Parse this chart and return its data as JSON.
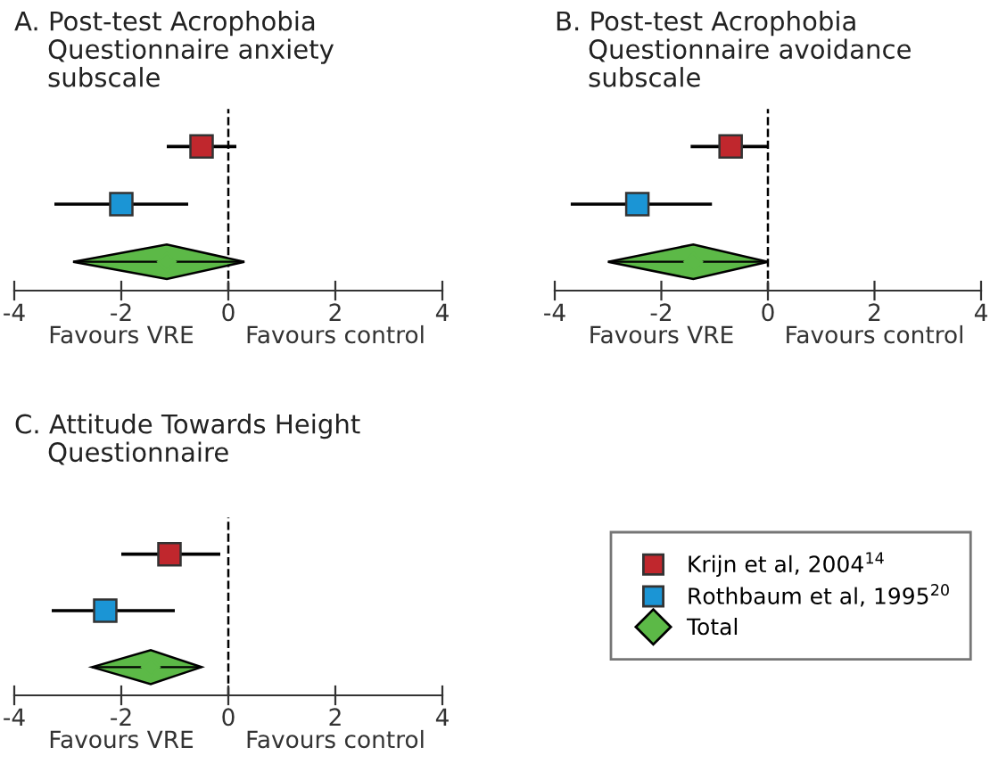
{
  "chart_data": [
    {
      "type": "scatter",
      "title": "A. Post-test Acrophobia\n    Questionnaire anxiety\n    subscale",
      "orientation": "horizontal",
      "categories": [
        null,
        null,
        null
      ],
      "xlim": [
        -4,
        4
      ],
      "xticks": [
        -4,
        -2,
        0,
        2,
        4
      ],
      "tick_labels": "x",
      "grid": false,
      "legend": false,
      "ref_lines": [
        {
          "axis": "x",
          "value": 0,
          "line_style": "dashed",
          "color": "#000000"
        }
      ],
      "annotations": [
        "Favours VRE",
        "Favours control"
      ],
      "series": [
        {
          "color": "#c0272d",
          "marker": "square",
          "values": [
            -0.5,
            null,
            null
          ],
          "errors": [
            [
              -1.15,
              0.15
            ],
            null,
            null
          ]
        },
        {
          "color": "#1b95d5",
          "marker": "square",
          "values": [
            null,
            -2.0,
            null
          ],
          "errors": [
            null,
            [
              -3.25,
              -0.75
            ],
            null
          ]
        },
        {
          "color": "#5cb947",
          "marker": "diamond",
          "values": [
            null,
            null,
            -1.15
          ],
          "errors": [
            null,
            null,
            [
              -2.9,
              0.3
            ]
          ]
        }
      ]
    },
    {
      "type": "scatter",
      "title": "B. Post-test Acrophobia\n    Questionnaire avoidance\n    subscale",
      "orientation": "horizontal",
      "categories": [
        null,
        null,
        null
      ],
      "xlim": [
        -4,
        4
      ],
      "xticks": [
        -4,
        -2,
        0,
        2,
        4
      ],
      "tick_labels": "x",
      "grid": false,
      "legend": false,
      "ref_lines": [
        {
          "axis": "x",
          "value": 0,
          "line_style": "dashed",
          "color": "#000000"
        }
      ],
      "annotations": [
        "Favours VRE",
        "Favours control"
      ],
      "series": [
        {
          "color": "#c0272d",
          "marker": "square",
          "values": [
            -0.7,
            null,
            null
          ],
          "errors": [
            [
              -1.45,
              0.0
            ],
            null,
            null
          ]
        },
        {
          "color": "#1b95d5",
          "marker": "square",
          "values": [
            null,
            -2.45,
            null
          ],
          "errors": [
            null,
            [
              -3.7,
              -1.05
            ],
            null
          ]
        },
        {
          "color": "#5cb947",
          "marker": "diamond",
          "values": [
            null,
            null,
            -1.4
          ],
          "errors": [
            null,
            null,
            [
              -3.0,
              0.0
            ]
          ]
        }
      ]
    },
    {
      "type": "scatter",
      "title": "C. Attitude Towards Height\n    Questionnaire",
      "orientation": "horizontal",
      "categories": [
        null,
        null,
        null
      ],
      "xlim": [
        -4,
        4
      ],
      "xticks": [
        -4,
        -2,
        0,
        2,
        4
      ],
      "tick_labels": "x",
      "grid": false,
      "legend": "right",
      "ref_lines": [
        {
          "axis": "x",
          "value": 0,
          "line_style": "dashed",
          "color": "#000000"
        }
      ],
      "annotations": [
        "Favours VRE",
        "Favours control"
      ],
      "series": [
        {
          "name": "Krijn et al, 2004$^{14}$",
          "color": "#c0272d",
          "marker": "square",
          "values": [
            -1.1,
            null,
            null
          ],
          "errors": [
            [
              -2.0,
              -0.15
            ],
            null,
            null
          ]
        },
        {
          "name": "Rothbaum et al, 1995$^{20}$",
          "color": "#1b95d5",
          "marker": "square",
          "values": [
            null,
            -2.3,
            null
          ],
          "errors": [
            null,
            [
              -3.3,
              -1.0
            ],
            null
          ]
        },
        {
          "name": "Total",
          "color": "#5cb947",
          "marker": "diamond",
          "values": [
            null,
            null,
            -1.45
          ],
          "errors": [
            null,
            null,
            [
              -2.55,
              -0.5
            ]
          ]
        }
      ]
    }
  ]
}
